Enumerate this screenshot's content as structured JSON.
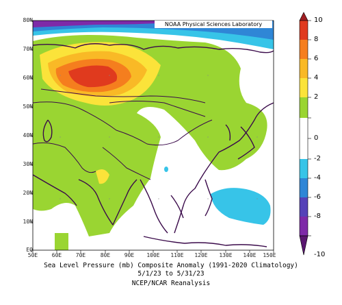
{
  "figure": {
    "credit": "NOAA Physical Sciences Laboratory",
    "caption_line1": "Sea Level Pressure (mb) Composite Anomaly (1991-2020 Climatology)",
    "caption_line2": "5/1/23 to 5/31/23",
    "caption_line3": "NCEP/NCAR Reanalysis"
  },
  "map": {
    "lat_labels": [
      "80N",
      "70N",
      "60N",
      "50N",
      "40N",
      "30N",
      "20N",
      "10N",
      "EQ"
    ],
    "lon_labels": [
      "50E",
      "60E",
      "70E",
      "80E",
      "90E",
      "100E",
      "110E",
      "120E",
      "130E",
      "140E",
      "150E"
    ],
    "region": "Asia"
  },
  "colorbar": {
    "labels": [
      "10",
      "8",
      "6",
      "4",
      "2",
      "0",
      "-2",
      "-4",
      "-6",
      "-8",
      "-10"
    ],
    "colors": [
      "#a01e22",
      "#e03a1e",
      "#f57e1e",
      "#f9b926",
      "#fbe33a",
      "#9ad532",
      "#ffffff",
      "#37c4e8",
      "#2f86d6",
      "#5542b8",
      "#7e2aa8",
      "#5a1670"
    ]
  }
}
